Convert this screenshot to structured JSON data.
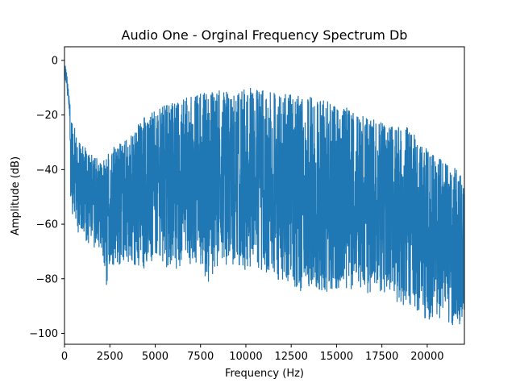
{
  "chart_data": {
    "type": "line",
    "title": "Audio One - Orginal Frequency Spectrum Db",
    "xlabel": "Frequency (Hz)",
    "ylabel": "Amplitude (dB)",
    "xlim": [
      0,
      22050
    ],
    "ylim": [
      -104,
      5
    ],
    "xticks": [
      0,
      2500,
      5000,
      7500,
      10000,
      12500,
      15000,
      17500,
      20000
    ],
    "yticks": [
      0,
      -20,
      -40,
      -60,
      -80,
      -100
    ],
    "grid": false,
    "line_color": "#1f77b4",
    "series": [
      {
        "name": "",
        "envelope_x": [
          0,
          100,
          200,
          400,
          700,
          1000,
          1500,
          2000,
          2300,
          2500,
          3000,
          3500,
          4000,
          4500,
          5000,
          5500,
          6000,
          6500,
          7000,
          7500,
          8000,
          8500,
          8800,
          9000,
          9500,
          10000,
          10500,
          11000,
          11500,
          12000,
          12500,
          13000,
          13500,
          14000,
          14500,
          15000,
          15500,
          16000,
          16500,
          17000,
          17500,
          18000,
          18500,
          19000,
          19500,
          20000,
          20500,
          21000,
          21500,
          22000
        ],
        "envelope_upper": [
          0,
          -3,
          -10,
          -20,
          -28,
          -31,
          -34,
          -35,
          -36,
          -33,
          -30,
          -28,
          -24,
          -20,
          -18,
          -16,
          -15,
          -14,
          -13,
          -12,
          -11,
          -11,
          -8,
          -11,
          -11,
          -10,
          -10,
          -11,
          -11,
          -12,
          -12,
          -13,
          -13,
          -14,
          -15,
          -16,
          -17,
          -19,
          -20,
          -21,
          -22,
          -23,
          -24,
          -24,
          -29,
          -32,
          -34,
          -37,
          -39,
          -43
        ],
        "envelope_lower": [
          -5,
          -40,
          -47,
          -56,
          -64,
          -66,
          -68,
          -70,
          -88,
          -75,
          -75,
          -76,
          -78,
          -76,
          -76,
          -76,
          -78,
          -75,
          -75,
          -76,
          -82,
          -75,
          -76,
          -75,
          -77,
          -78,
          -78,
          -78,
          -79,
          -82,
          -82,
          -85,
          -84,
          -84,
          -87,
          -85,
          -84,
          -84,
          -86,
          -85,
          -86,
          -86,
          -90,
          -90,
          -92,
          -96,
          -93,
          -97,
          -99,
          -95
        ]
      }
    ]
  }
}
